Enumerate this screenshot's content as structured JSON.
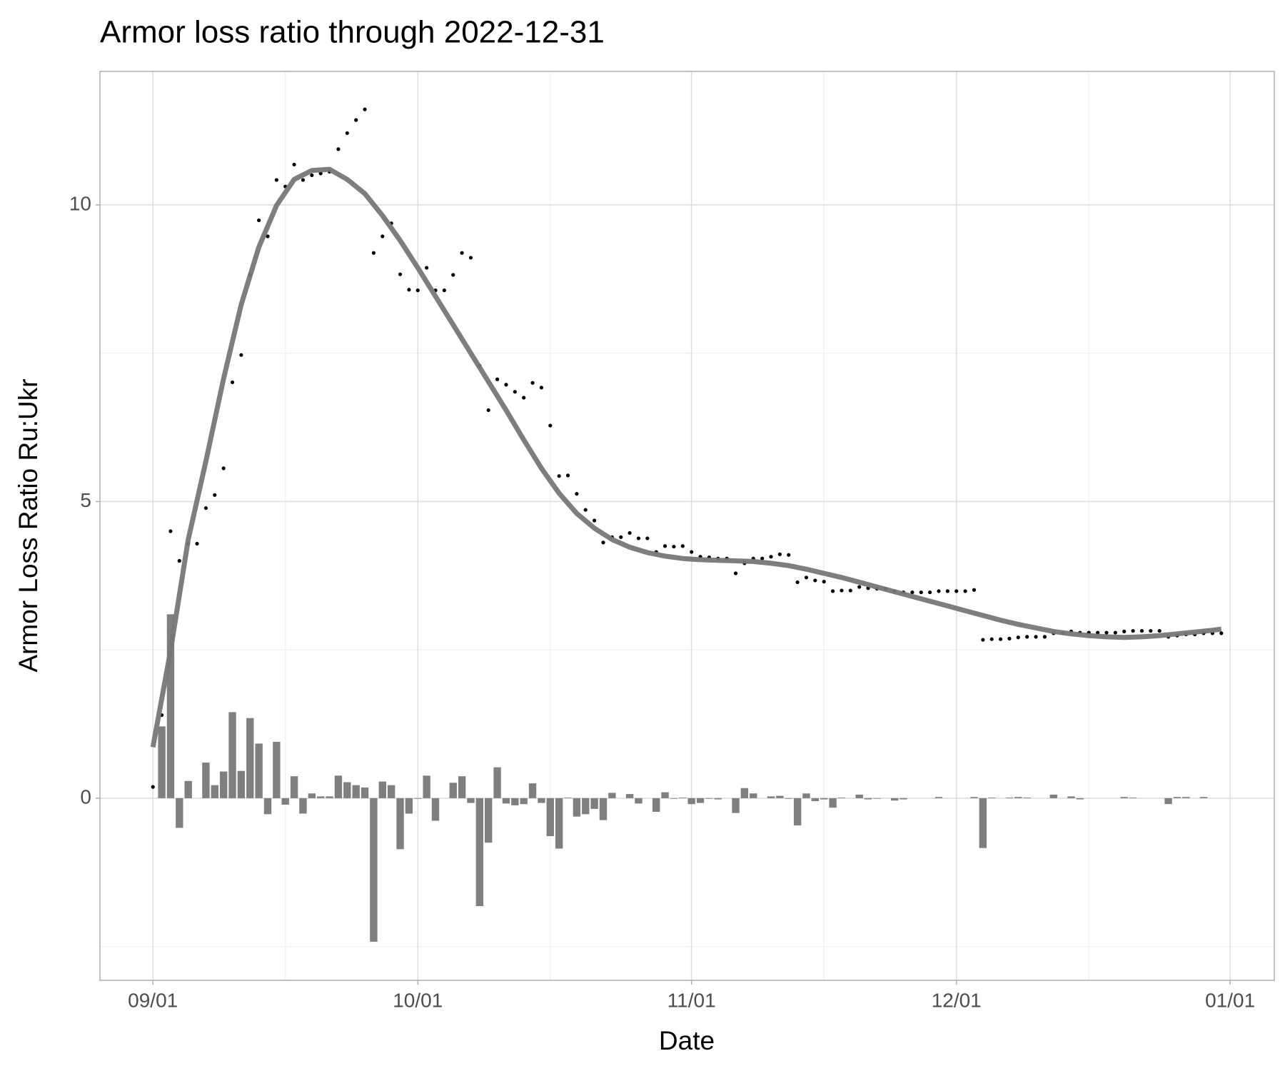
{
  "chart_data": {
    "type": "combo",
    "title": "Armor loss ratio through 2022-12-31",
    "x_label": "Date",
    "y_label": "Armor Loss Ratio Ru:Ukr",
    "grid": true,
    "xlim": [
      "08/26",
      "01/06"
    ],
    "xticks": [
      "09/01",
      "10/01",
      "11/01",
      "12/01",
      "01/01"
    ],
    "xticks_minor": [
      "09/16",
      "10/16",
      "11/16",
      "12/16"
    ],
    "ylim": [
      -3.07,
      12.25
    ],
    "yticks": [
      0,
      5,
      10
    ],
    "yticks_minor": [
      -2.5,
      2.5,
      7.5
    ],
    "x": [
      "09/01",
      "09/02",
      "09/03",
      "09/04",
      "09/05",
      "09/06",
      "09/07",
      "09/08",
      "09/09",
      "09/10",
      "09/11",
      "09/12",
      "09/13",
      "09/14",
      "09/15",
      "09/16",
      "09/17",
      "09/18",
      "09/19",
      "09/20",
      "09/21",
      "09/22",
      "09/23",
      "09/24",
      "09/25",
      "09/26",
      "09/27",
      "09/28",
      "09/29",
      "09/30",
      "10/01",
      "10/02",
      "10/03",
      "10/04",
      "10/05",
      "10/06",
      "10/07",
      "10/08",
      "10/09",
      "10/10",
      "10/11",
      "10/12",
      "10/13",
      "10/14",
      "10/15",
      "10/16",
      "10/17",
      "10/18",
      "10/19",
      "10/20",
      "10/21",
      "10/22",
      "10/23",
      "10/24",
      "10/25",
      "10/26",
      "10/27",
      "10/28",
      "10/29",
      "10/30",
      "10/31",
      "11/01",
      "11/02",
      "11/03",
      "11/04",
      "11/05",
      "11/06",
      "11/07",
      "11/08",
      "11/09",
      "11/10",
      "11/11",
      "11/12",
      "11/13",
      "11/14",
      "11/15",
      "11/16",
      "11/17",
      "11/18",
      "11/19",
      "11/20",
      "11/21",
      "11/22",
      "11/23",
      "11/24",
      "11/25",
      "11/26",
      "11/27",
      "11/28",
      "11/29",
      "11/30",
      "12/01",
      "12/02",
      "12/03",
      "12/04",
      "12/05",
      "12/06",
      "12/07",
      "12/08",
      "12/09",
      "12/10",
      "12/11",
      "12/12",
      "12/13",
      "12/14",
      "12/15",
      "12/16",
      "12/17",
      "12/18",
      "12/19",
      "12/20",
      "12/21",
      "12/22",
      "12/23",
      "12/24",
      "12/25",
      "12/26",
      "12/27",
      "12/28",
      "12/29",
      "12/30",
      "12/31"
    ],
    "series": [
      {
        "type": "bar",
        "color": "#7f7f7f",
        "values": [
          null,
          1.21,
          3.1,
          -0.5,
          0.29,
          0,
          0.6,
          0.22,
          0.45,
          1.45,
          0.46,
          1.35,
          0.92,
          -0.27,
          0.95,
          -0.11,
          0.37,
          -0.26,
          0.08,
          0.03,
          0.03,
          0.38,
          0.27,
          0.22,
          0.18,
          -2.42,
          0.28,
          0.22,
          -0.86,
          -0.26,
          -0.01,
          0.38,
          -0.38,
          0,
          0.26,
          0.37,
          -0.08,
          -1.82,
          -0.75,
          0.52,
          -0.09,
          -0.12,
          -0.1,
          0.25,
          -0.08,
          -0.64,
          -0.85,
          0.01,
          -0.31,
          -0.27,
          -0.18,
          -0.37,
          0.09,
          0,
          0.07,
          -0.09,
          0,
          -0.23,
          0.1,
          -0.01,
          0.01,
          -0.1,
          -0.08,
          -0.01,
          -0.02,
          0,
          -0.25,
          0.17,
          0.08,
          0,
          0.03,
          0.04,
          -0.01,
          -0.46,
          0.08,
          -0.05,
          -0.02,
          -0.16,
          0.01,
          0,
          0.06,
          -0.02,
          -0.01,
          0,
          -0.04,
          -0.02,
          0,
          0,
          0,
          0.02,
          0,
          0,
          0,
          0.02,
          -0.84,
          0.01,
          0,
          0.01,
          0.02,
          0.01,
          0,
          0,
          0.06,
          0,
          0.03,
          -0.02,
          0,
          0,
          0,
          0,
          0.02,
          0.01,
          0,
          0,
          0,
          -0.1,
          0.02,
          0.02,
          0,
          0.02,
          0,
          0
        ]
      },
      {
        "type": "scatter",
        "color": "#000000",
        "values": [
          0.19,
          1.4,
          4.5,
          4.0,
          4.29,
          4.29,
          4.89,
          5.11,
          5.56,
          7.01,
          7.47,
          8.82,
          9.74,
          9.47,
          10.42,
          10.31,
          10.68,
          10.42,
          10.5,
          10.53,
          10.56,
          10.94,
          11.21,
          11.43,
          11.61,
          9.19,
          9.47,
          9.69,
          8.83,
          8.57,
          8.56,
          8.94,
          8.56,
          8.56,
          8.82,
          9.19,
          9.11,
          7.29,
          6.54,
          7.06,
          6.97,
          6.85,
          6.75,
          7.0,
          6.92,
          6.28,
          5.43,
          5.44,
          5.13,
          4.86,
          4.68,
          4.31,
          4.4,
          4.4,
          4.47,
          4.38,
          4.38,
          4.15,
          4.25,
          4.24,
          4.25,
          4.15,
          4.07,
          4.06,
          4.04,
          4.04,
          3.79,
          3.96,
          4.04,
          4.04,
          4.07,
          4.11,
          4.1,
          3.64,
          3.72,
          3.67,
          3.65,
          3.49,
          3.5,
          3.5,
          3.56,
          3.54,
          3.53,
          3.53,
          3.49,
          3.47,
          3.47,
          3.47,
          3.47,
          3.49,
          3.49,
          3.49,
          3.49,
          3.51,
          2.67,
          2.68,
          2.68,
          2.69,
          2.71,
          2.72,
          2.72,
          2.72,
          2.78,
          2.78,
          2.81,
          2.79,
          2.79,
          2.79,
          2.79,
          2.79,
          2.81,
          2.82,
          2.82,
          2.82,
          2.82,
          2.72,
          2.74,
          2.76,
          2.76,
          2.78,
          2.78,
          2.78
        ]
      },
      {
        "type": "line",
        "color": "#777777",
        "x": [
          "09/01",
          "09/03",
          "09/05",
          "09/07",
          "09/09",
          "09/11",
          "09/13",
          "09/15",
          "09/17",
          "09/19",
          "09/21",
          "09/23",
          "09/25",
          "09/27",
          "09/29",
          "10/01",
          "10/03",
          "10/05",
          "10/07",
          "10/09",
          "10/11",
          "10/13",
          "10/15",
          "10/17",
          "10/19",
          "10/21",
          "10/23",
          "10/25",
          "10/27",
          "10/29",
          "10/31",
          "11/02",
          "11/04",
          "11/06",
          "11/08",
          "11/10",
          "11/12",
          "11/14",
          "11/16",
          "11/18",
          "11/20",
          "11/22",
          "11/24",
          "11/26",
          "11/28",
          "11/30",
          "12/02",
          "12/04",
          "12/06",
          "12/08",
          "12/10",
          "12/12",
          "12/14",
          "12/16",
          "12/18",
          "12/20",
          "12/22",
          "12/24",
          "12/26",
          "12/28",
          "12/30",
          "12/31"
        ],
        "values": [
          0.86,
          2.49,
          4.36,
          5.68,
          7.07,
          8.32,
          9.29,
          9.99,
          10.43,
          10.58,
          10.6,
          10.43,
          10.19,
          9.82,
          9.4,
          8.94,
          8.46,
          7.98,
          7.5,
          7.02,
          6.54,
          6.04,
          5.56,
          5.14,
          4.8,
          4.55,
          4.36,
          4.23,
          4.14,
          4.08,
          4.04,
          4.02,
          4.01,
          4.0,
          3.99,
          3.96,
          3.92,
          3.86,
          3.79,
          3.72,
          3.64,
          3.56,
          3.48,
          3.4,
          3.32,
          3.24,
          3.16,
          3.08,
          3.0,
          2.93,
          2.87,
          2.81,
          2.77,
          2.74,
          2.72,
          2.71,
          2.72,
          2.74,
          2.77,
          2.8,
          2.83,
          2.85
        ]
      }
    ]
  }
}
